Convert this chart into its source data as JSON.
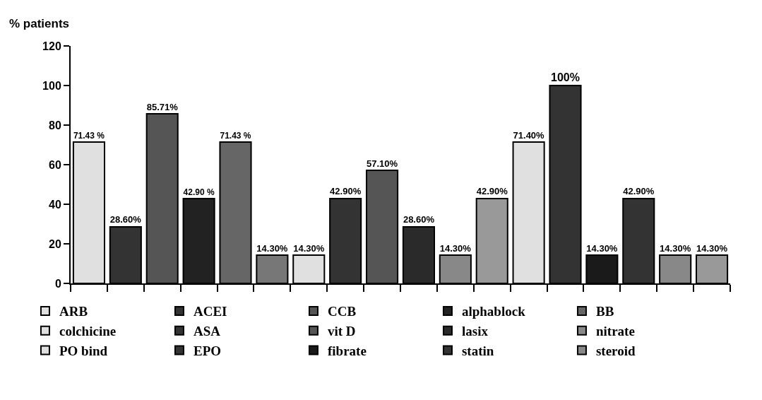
{
  "chart_data": {
    "type": "bar",
    "ylabel": "% patients",
    "categories": [
      null,
      null,
      null,
      null,
      null,
      null,
      null,
      null,
      null,
      null,
      null,
      null,
      null,
      null,
      null,
      null,
      null,
      null
    ],
    "series": [
      {
        "name": "ARB",
        "color": "#e0e0e0",
        "values": [
          71.43,
          null,
          null,
          null,
          null,
          null,
          null,
          null,
          null,
          null,
          null,
          null,
          null,
          null,
          null,
          null,
          null,
          null
        ],
        "value_labels": [
          "71.43 %",
          null,
          null,
          null,
          null,
          null,
          null,
          null,
          null,
          null,
          null,
          null,
          null,
          null,
          null,
          null,
          null,
          null
        ]
      },
      {
        "name": "ACEI",
        "color": "#333333",
        "values": [
          null,
          28.6,
          null,
          null,
          null,
          null,
          null,
          null,
          null,
          null,
          null,
          null,
          null,
          null,
          null,
          null,
          null,
          null
        ],
        "value_labels": [
          null,
          "28.60%",
          null,
          null,
          null,
          null,
          null,
          null,
          null,
          null,
          null,
          null,
          null,
          null,
          null,
          null,
          null,
          null
        ]
      },
      {
        "name": "CCB",
        "color": "#555555",
        "values": [
          null,
          null,
          85.71,
          null,
          null,
          null,
          null,
          null,
          null,
          null,
          null,
          null,
          null,
          null,
          null,
          null,
          null,
          null
        ],
        "value_labels": [
          null,
          null,
          "85.71%",
          null,
          null,
          null,
          null,
          null,
          null,
          null,
          null,
          null,
          null,
          null,
          null,
          null,
          null,
          null
        ]
      },
      {
        "name": "alphablock",
        "color": "#222222",
        "values": [
          null,
          null,
          null,
          42.9,
          null,
          null,
          null,
          null,
          null,
          null,
          null,
          null,
          null,
          null,
          null,
          null,
          null,
          null
        ],
        "value_labels": [
          null,
          null,
          null,
          "42.90 %",
          null,
          null,
          null,
          null,
          null,
          null,
          null,
          null,
          null,
          null,
          null,
          null,
          null,
          null
        ]
      },
      {
        "name": "BB",
        "color": "#666666",
        "values": [
          null,
          null,
          null,
          null,
          71.43,
          null,
          null,
          null,
          null,
          null,
          null,
          null,
          null,
          null,
          null,
          null,
          null,
          null
        ],
        "value_labels": [
          null,
          null,
          null,
          null,
          "71.43 %",
          null,
          null,
          null,
          null,
          null,
          null,
          null,
          null,
          null,
          null,
          null,
          null,
          null
        ]
      },
      {
        "color": "#777777",
        "values": [
          null,
          null,
          null,
          null,
          null,
          14.3,
          null,
          null,
          null,
          null,
          null,
          null,
          null,
          null,
          null,
          null,
          null,
          null
        ],
        "value_labels": [
          null,
          null,
          null,
          null,
          null,
          "14.30%",
          null,
          null,
          null,
          null,
          null,
          null,
          null,
          null,
          null,
          null,
          null,
          null
        ]
      },
      {
        "name": "colchicine",
        "color": "#e0e0e0",
        "values": [
          null,
          null,
          null,
          null,
          null,
          null,
          14.3,
          null,
          null,
          null,
          null,
          null,
          null,
          null,
          null,
          null,
          null,
          null
        ],
        "value_labels": [
          null,
          null,
          null,
          null,
          null,
          null,
          "14.30%",
          null,
          null,
          null,
          null,
          null,
          null,
          null,
          null,
          null,
          null,
          null
        ]
      },
      {
        "name": "ASA",
        "color": "#333333",
        "values": [
          null,
          null,
          null,
          null,
          null,
          null,
          null,
          42.9,
          null,
          null,
          null,
          null,
          null,
          null,
          null,
          null,
          null,
          null
        ],
        "value_labels": [
          null,
          null,
          null,
          null,
          null,
          null,
          null,
          "42.90%",
          null,
          null,
          null,
          null,
          null,
          null,
          null,
          null,
          null,
          null
        ]
      },
      {
        "name": "vit D",
        "color": "#555555",
        "values": [
          null,
          null,
          null,
          null,
          null,
          null,
          null,
          null,
          57.1,
          null,
          null,
          null,
          null,
          null,
          null,
          null,
          null,
          null
        ],
        "value_labels": [
          null,
          null,
          null,
          null,
          null,
          null,
          null,
          null,
          "57.10%",
          null,
          null,
          null,
          null,
          null,
          null,
          null,
          null,
          null
        ]
      },
      {
        "name": "lasix",
        "color": "#2a2a2a",
        "values": [
          null,
          null,
          null,
          null,
          null,
          null,
          null,
          null,
          null,
          28.6,
          null,
          null,
          null,
          null,
          null,
          null,
          null,
          null
        ],
        "value_labels": [
          null,
          null,
          null,
          null,
          null,
          null,
          null,
          null,
          null,
          "28.60%",
          null,
          null,
          null,
          null,
          null,
          null,
          null,
          null
        ]
      },
      {
        "name": "nitrate",
        "color": "#888888",
        "values": [
          null,
          null,
          null,
          null,
          null,
          null,
          null,
          null,
          null,
          null,
          14.3,
          null,
          null,
          null,
          null,
          null,
          null,
          null
        ],
        "value_labels": [
          null,
          null,
          null,
          null,
          null,
          null,
          null,
          null,
          null,
          null,
          "14.30%",
          null,
          null,
          null,
          null,
          null,
          null,
          null
        ]
      },
      {
        "color": "#999999",
        "values": [
          null,
          null,
          null,
          null,
          null,
          null,
          null,
          null,
          null,
          null,
          null,
          42.9,
          null,
          null,
          null,
          null,
          null,
          null
        ],
        "value_labels": [
          null,
          null,
          null,
          null,
          null,
          null,
          null,
          null,
          null,
          null,
          null,
          "42.90%",
          null,
          null,
          null,
          null,
          null,
          null
        ]
      },
      {
        "name": "PO bind",
        "color": "#e0e0e0",
        "values": [
          null,
          null,
          null,
          null,
          null,
          null,
          null,
          null,
          null,
          null,
          null,
          null,
          71.4,
          null,
          null,
          null,
          null,
          null
        ],
        "value_labels": [
          null,
          null,
          null,
          null,
          null,
          null,
          null,
          null,
          null,
          null,
          null,
          null,
          "71.40%",
          null,
          null,
          null,
          null,
          null
        ]
      },
      {
        "name": "EPO",
        "color": "#333333",
        "values": [
          null,
          null,
          null,
          null,
          null,
          null,
          null,
          null,
          null,
          null,
          null,
          null,
          null,
          100,
          null,
          null,
          null,
          null
        ],
        "value_labels": [
          null,
          null,
          null,
          null,
          null,
          null,
          null,
          null,
          null,
          null,
          null,
          null,
          null,
          "100%",
          null,
          null,
          null,
          null
        ]
      },
      {
        "name": "fibrate",
        "color": "#1a1a1a",
        "values": [
          null,
          null,
          null,
          null,
          null,
          null,
          null,
          null,
          null,
          null,
          null,
          null,
          null,
          null,
          14.3,
          null,
          null,
          null
        ],
        "value_labels": [
          null,
          null,
          null,
          null,
          null,
          null,
          null,
          null,
          null,
          null,
          null,
          null,
          null,
          null,
          "14.30%",
          null,
          null,
          null
        ]
      },
      {
        "name": "statin",
        "color": "#333333",
        "values": [
          null,
          null,
          null,
          null,
          null,
          null,
          null,
          null,
          null,
          null,
          null,
          null,
          null,
          null,
          null,
          42.9,
          null,
          null
        ],
        "value_labels": [
          null,
          null,
          null,
          null,
          null,
          null,
          null,
          null,
          null,
          null,
          null,
          null,
          null,
          null,
          null,
          "42.90%",
          null,
          null
        ]
      },
      {
        "name": "steroid",
        "color": "#888888",
        "values": [
          null,
          null,
          null,
          null,
          null,
          null,
          null,
          null,
          null,
          null,
          null,
          null,
          null,
          null,
          null,
          null,
          14.3,
          null
        ],
        "value_labels": [
          null,
          null,
          null,
          null,
          null,
          null,
          null,
          null,
          null,
          null,
          null,
          null,
          null,
          null,
          null,
          null,
          "14.30%",
          null
        ]
      },
      {
        "color": "#999999",
        "values": [
          null,
          null,
          null,
          null,
          null,
          null,
          null,
          null,
          null,
          null,
          null,
          null,
          null,
          null,
          null,
          null,
          null,
          14.3
        ],
        "value_labels": [
          null,
          null,
          null,
          null,
          null,
          null,
          null,
          null,
          null,
          null,
          null,
          null,
          null,
          null,
          null,
          null,
          null,
          "14.30%"
        ]
      }
    ],
    "ylim": [
      0,
      120
    ],
    "yticks": [
      0,
      20,
      40,
      60,
      80,
      100,
      120
    ],
    "grid": false,
    "legend": "bottom"
  }
}
